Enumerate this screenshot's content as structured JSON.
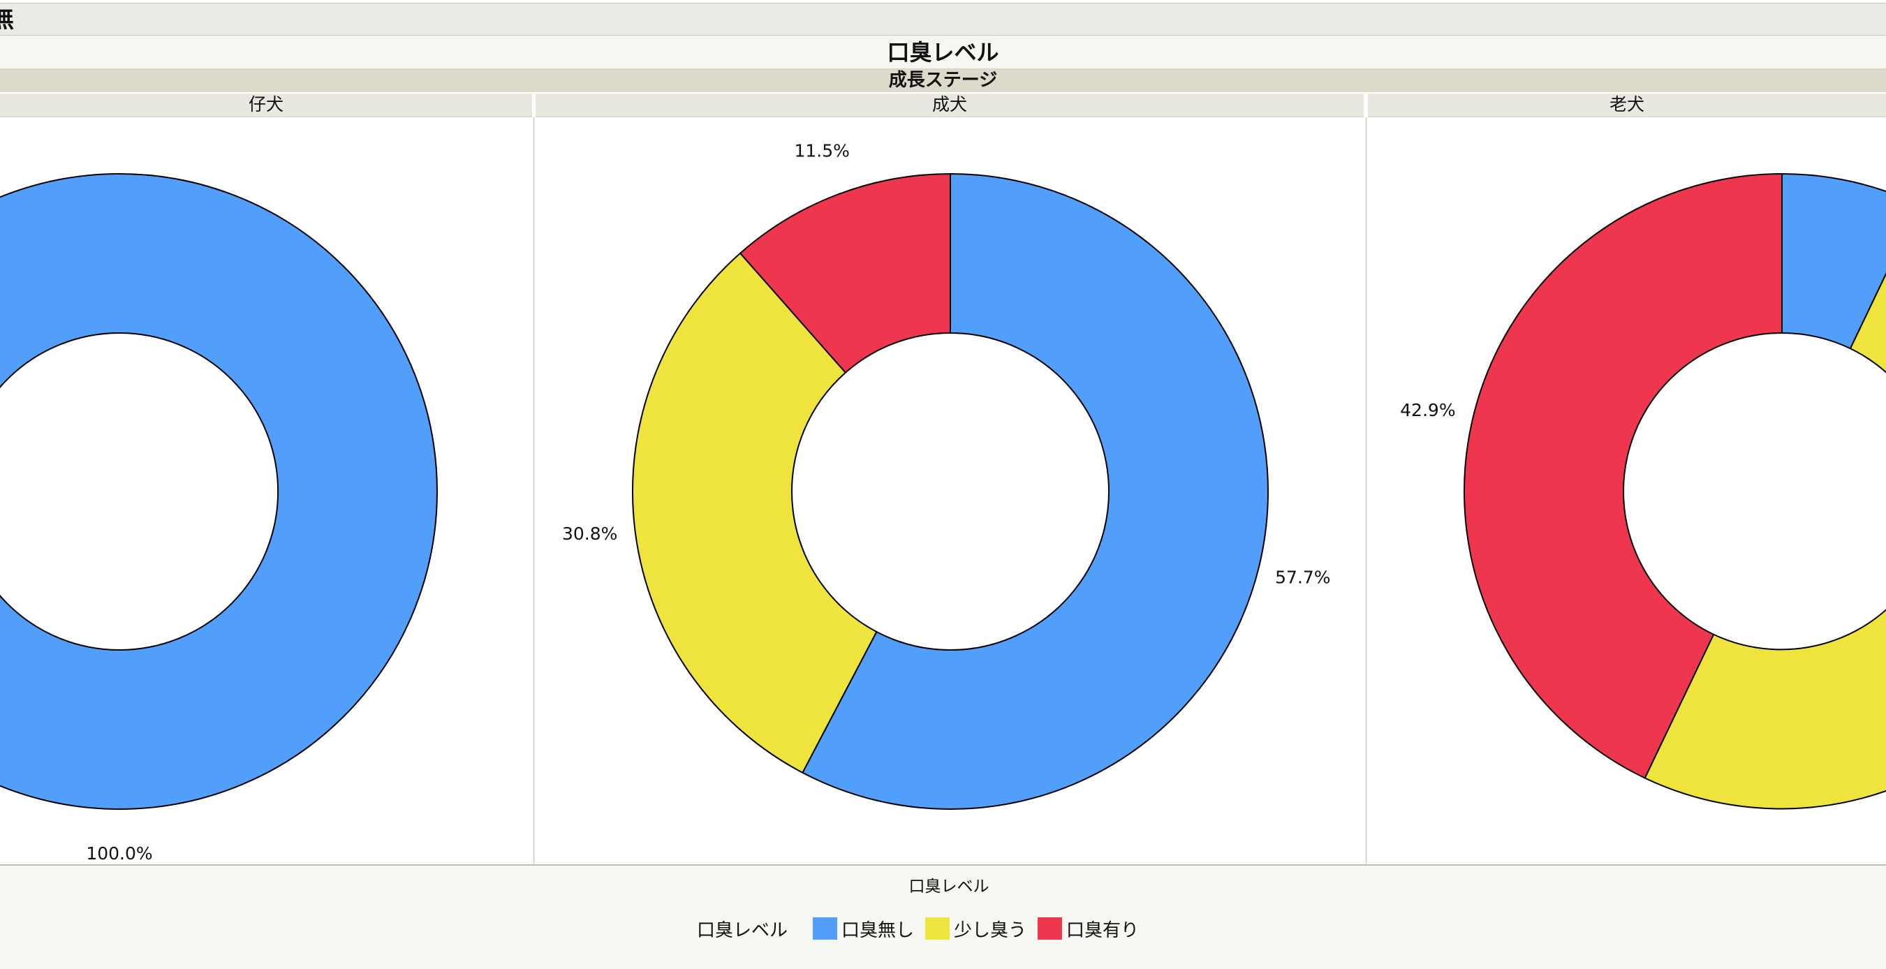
{
  "header": {
    "top_band_label": "無"
  },
  "chart_data": {
    "type": "pie",
    "subtype": "donut",
    "title": "口臭レベル",
    "group_title": "成長ステージ",
    "panels": [
      {
        "name": "仔犬",
        "slices": [
          {
            "category": "口臭無し",
            "percent": 100.0,
            "label": "100.0%"
          }
        ]
      },
      {
        "name": "成犬",
        "slices": [
          {
            "category": "口臭無し",
            "percent": 57.7,
            "label": "57.7%"
          },
          {
            "category": "少し臭う",
            "percent": 30.8,
            "label": "30.8%"
          },
          {
            "category": "口臭有り",
            "percent": 11.5,
            "label": "11.5%"
          }
        ]
      },
      {
        "name": "老犬",
        "slices": [
          {
            "category": "口臭無し",
            "percent": 7.1,
            "label": ""
          },
          {
            "category": "少し臭う",
            "percent": 50.0,
            "label": ""
          },
          {
            "category": "口臭有り",
            "percent": 42.9,
            "label": "42.9%"
          }
        ]
      }
    ],
    "legend": {
      "title": "口臭レベル",
      "name": "口臭レベル",
      "placement": "bottom",
      "entries": [
        {
          "label": "口臭無し",
          "color": "#519efb"
        },
        {
          "label": "少し臭う",
          "color": "#eee43d"
        },
        {
          "label": "口臭有り",
          "color": "#ee364e"
        }
      ]
    }
  }
}
